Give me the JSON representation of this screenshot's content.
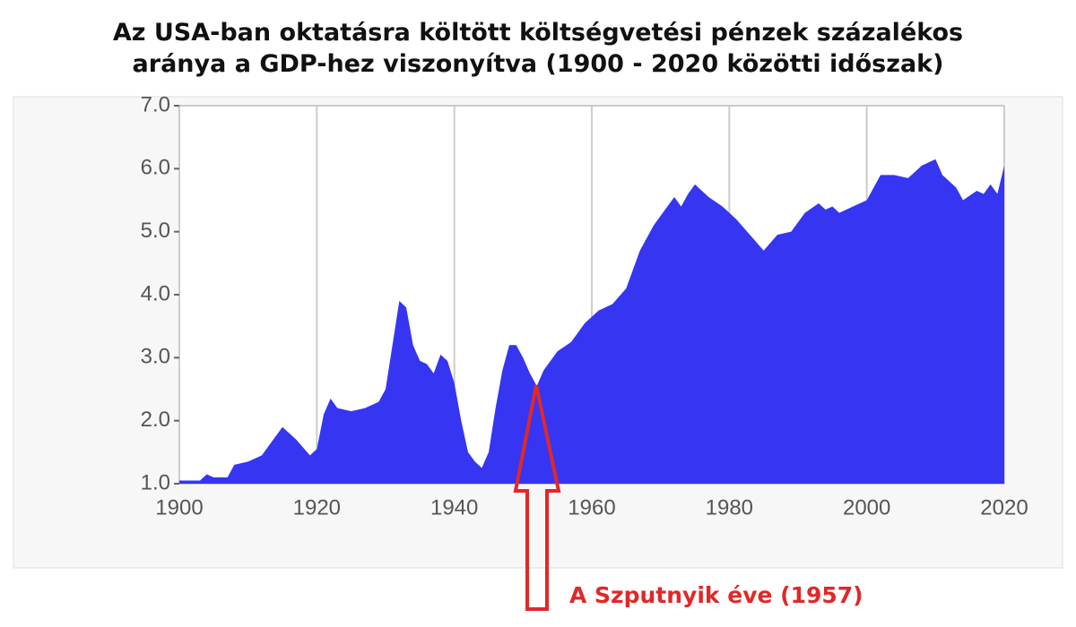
{
  "chart_data": {
    "type": "area",
    "title": [
      "Az USA-ban oktatásra költött költségvetési pénzek százalékos",
      "aránya a GDP-hez viszonyítva (1900 - 2020 közötti időszak)"
    ],
    "annotation": "A Szputnyik éve (1957)",
    "x": [
      1900,
      1903,
      1904,
      1905,
      1907,
      1908,
      1910,
      1912,
      1913,
      1915,
      1917,
      1919,
      1920,
      1921,
      1922,
      1923,
      1925,
      1927,
      1929,
      1930,
      1931,
      1932,
      1933,
      1934,
      1935,
      1936,
      1937,
      1938,
      1939,
      1940,
      1941,
      1942,
      1943,
      1944,
      1945,
      1946,
      1947,
      1948,
      1949,
      1950,
      1951,
      1952,
      1953,
      1955,
      1957,
      1959,
      1961,
      1963,
      1965,
      1967,
      1969,
      1971,
      1972,
      1973,
      1974,
      1975,
      1977,
      1979,
      1981,
      1983,
      1985,
      1987,
      1989,
      1991,
      1993,
      1994,
      1995,
      1996,
      1998,
      2000,
      2002,
      2004,
      2006,
      2008,
      2010,
      2011,
      2013,
      2014,
      2016,
      2017,
      2018,
      2019,
      2020
    ],
    "series": [
      {
        "color": "#3535f2",
        "values": [
          1.05,
          1.05,
          1.15,
          1.1,
          1.1,
          1.3,
          1.35,
          1.45,
          1.6,
          1.9,
          1.7,
          1.45,
          1.55,
          2.1,
          2.35,
          2.2,
          2.15,
          2.2,
          2.3,
          2.5,
          3.2,
          3.9,
          3.8,
          3.2,
          2.95,
          2.9,
          2.75,
          3.05,
          2.95,
          2.6,
          2.0,
          1.5,
          1.35,
          1.25,
          1.5,
          2.2,
          2.8,
          3.2,
          3.2,
          3.0,
          2.75,
          2.55,
          2.8,
          3.1,
          3.25,
          3.55,
          3.75,
          3.85,
          4.1,
          4.7,
          5.1,
          5.4,
          5.55,
          5.4,
          5.6,
          5.75,
          5.55,
          5.4,
          5.2,
          4.95,
          4.7,
          4.95,
          5.0,
          5.3,
          5.45,
          5.35,
          5.4,
          5.3,
          5.4,
          5.5,
          5.9,
          5.9,
          5.85,
          6.05,
          6.15,
          5.9,
          5.7,
          5.5,
          5.65,
          5.6,
          5.75,
          5.6,
          6.05
        ]
      }
    ],
    "xlim": [
      1900,
      2020
    ],
    "ylim": [
      1,
      7
    ],
    "xticks": [
      1900,
      1920,
      1940,
      1960,
      1980,
      2000,
      2020
    ],
    "yticks": [
      {
        "value": 1,
        "label": "1.0"
      },
      {
        "value": 2,
        "label": "2.0"
      },
      {
        "value": 3,
        "label": "3.0"
      },
      {
        "value": 4,
        "label": "4.0"
      },
      {
        "value": 5,
        "label": "5.0"
      },
      {
        "value": 6,
        "label": "6.0"
      },
      {
        "value": 7,
        "label": "7.0"
      }
    ],
    "grid": "x"
  }
}
